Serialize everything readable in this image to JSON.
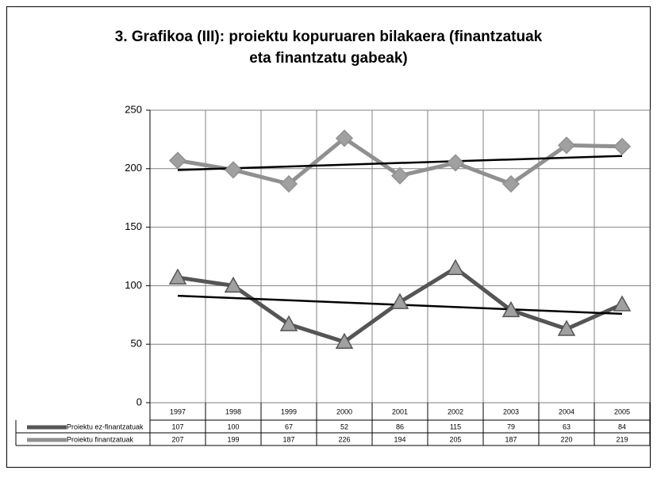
{
  "chart_data": {
    "type": "line",
    "title_lines": [
      "3. Grafikoa (III): proiektu kopuruaren bilakaera (finantzatuak",
      "eta finantzatu gabeak)"
    ],
    "categories": [
      "1997",
      "1998",
      "1999",
      "2000",
      "2001",
      "2002",
      "2003",
      "2004",
      "2005"
    ],
    "series": [
      {
        "name": "Proiektu ez-finantzatuak",
        "color": "#555555",
        "marker": "triangle",
        "values": [
          107,
          100,
          67,
          52,
          86,
          115,
          79,
          63,
          84
        ]
      },
      {
        "name": "Proiektu finantzatuak",
        "color": "#909090",
        "marker": "diamond",
        "values": [
          207,
          199,
          187,
          226,
          194,
          205,
          187,
          220,
          219
        ]
      }
    ],
    "ylim": [
      0,
      250
    ],
    "yticks": [
      0,
      50,
      100,
      150,
      200,
      250
    ],
    "grid": true,
    "trendline": true,
    "data_table": true
  }
}
